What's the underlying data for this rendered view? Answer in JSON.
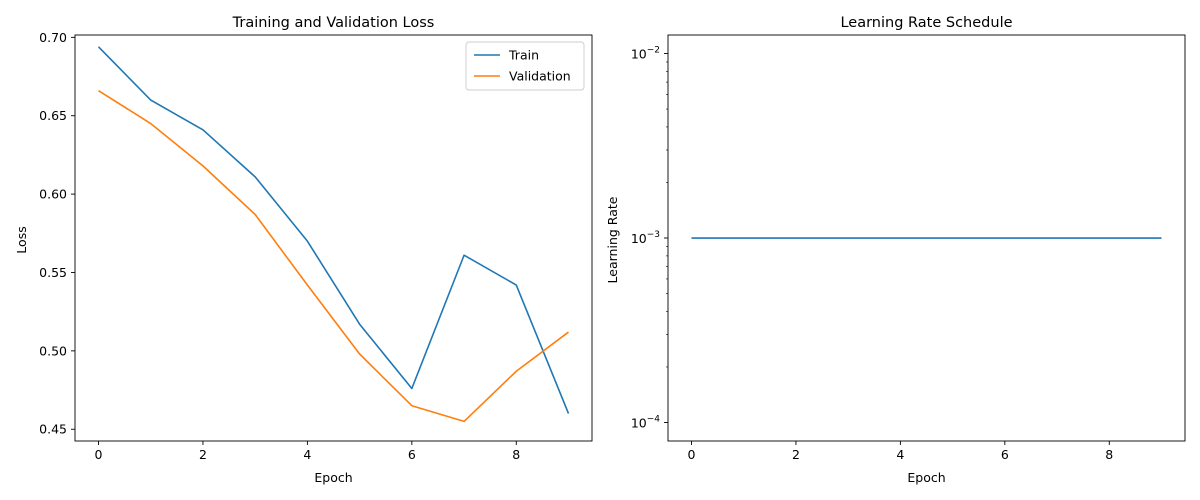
{
  "chart_data": [
    {
      "type": "line",
      "title": "Training and Validation Loss",
      "xlabel": "Epoch",
      "ylabel": "Loss",
      "x": [
        0,
        1,
        2,
        3,
        4,
        5,
        6,
        7,
        8,
        9
      ],
      "xlim": [
        -0.45,
        9.45
      ],
      "ylim": [
        0.4425,
        0.7015
      ],
      "xticks": [
        0,
        2,
        4,
        6,
        8
      ],
      "yticks": [
        0.45,
        0.5,
        0.55,
        0.6,
        0.65,
        0.7
      ],
      "ytick_labels": [
        "0.45",
        "0.50",
        "0.55",
        "0.60",
        "0.65",
        "0.70"
      ],
      "legend_position": "top-right",
      "grid": false,
      "series": [
        {
          "name": "Train",
          "color": "#1f77b4",
          "values": [
            0.694,
            0.66,
            0.641,
            0.611,
            0.57,
            0.517,
            0.476,
            0.561,
            0.542,
            0.46
          ]
        },
        {
          "name": "Validation",
          "color": "#ff7f0e",
          "values": [
            0.666,
            0.645,
            0.618,
            0.587,
            0.542,
            0.498,
            0.465,
            0.455,
            0.487,
            0.512
          ]
        }
      ]
    },
    {
      "type": "line",
      "title": "Learning Rate Schedule",
      "xlabel": "Epoch",
      "ylabel": "Learning Rate",
      "x": [
        0,
        1,
        2,
        3,
        4,
        5,
        6,
        7,
        8,
        9
      ],
      "xlim": [
        -0.45,
        9.45
      ],
      "yscale": "log",
      "ylim": [
        7.94e-05,
        0.0126
      ],
      "xticks": [
        0,
        2,
        4,
        6,
        8
      ],
      "yticks": [
        0.0001,
        0.001,
        0.01
      ],
      "ytick_exponents": [
        "−4",
        "−3",
        "−2"
      ],
      "grid": false,
      "series": [
        {
          "color": "#1f77b4",
          "values": [
            0.001,
            0.001,
            0.001,
            0.001,
            0.001,
            0.001,
            0.001,
            0.001,
            0.001,
            0.001
          ]
        }
      ]
    }
  ]
}
